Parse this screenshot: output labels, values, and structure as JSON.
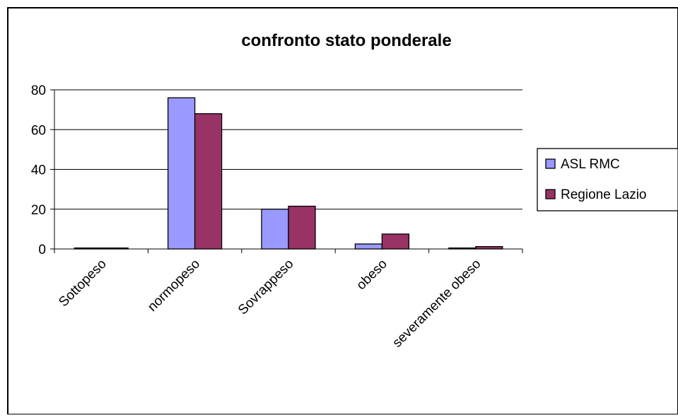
{
  "chart_data": {
    "type": "bar",
    "title": "confronto stato ponderale",
    "xlabel": "",
    "ylabel": "",
    "categories": [
      "Sottopeso",
      "normopeso",
      "Sovrappeso",
      "obeso",
      "severamente obeso"
    ],
    "series": [
      {
        "name": "ASL RMC",
        "color": "#9999ff",
        "values": [
          0.5,
          76,
          20,
          2.5,
          0.5
        ]
      },
      {
        "name": "Regione Lazio",
        "color": "#993366",
        "values": [
          0.5,
          68,
          21.5,
          7.5,
          1.2
        ]
      }
    ],
    "ylim": [
      0,
      80
    ],
    "yticks": [
      0,
      20,
      40,
      60,
      80
    ],
    "grid": true,
    "legend": "right"
  }
}
